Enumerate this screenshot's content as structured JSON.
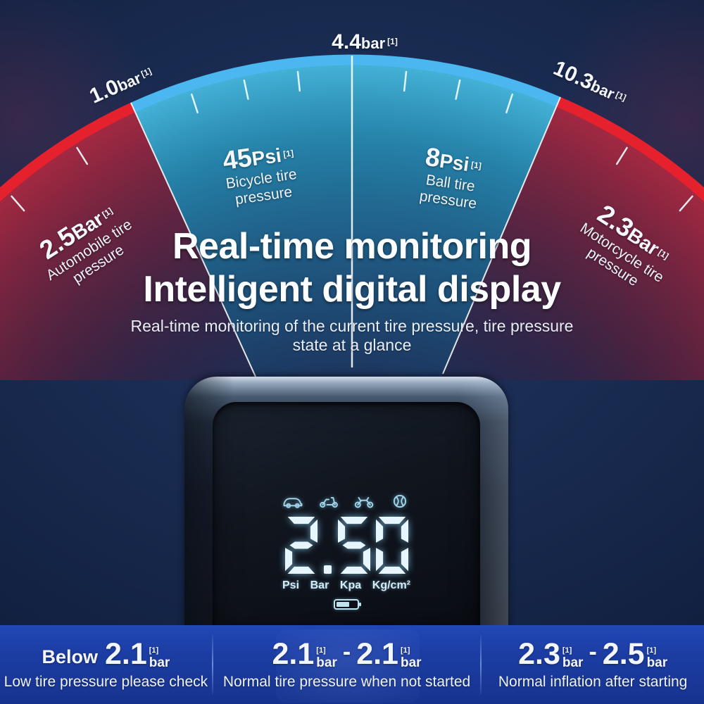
{
  "gauge": {
    "top_label": {
      "value": "4.4",
      "unit": "bar",
      "sup": "[1]"
    },
    "left_label": {
      "value": "1.0",
      "unit": "bar",
      "sup": "[1]"
    },
    "right_label": {
      "value": "10.3",
      "unit": "bar",
      "sup": "[1]"
    },
    "sectors": [
      {
        "value": "2.5",
        "unit": "Bar",
        "sup": "[1]",
        "line1": "Automobile tire",
        "line2": "pressure"
      },
      {
        "value": "45",
        "unit": "Psi",
        "sup": "[1]",
        "line1": "Bicycle tire",
        "line2": "pressure"
      },
      {
        "value": "8",
        "unit": "Psi",
        "sup": "[1]",
        "line1": "Ball tire",
        "line2": "pressure"
      },
      {
        "value": "2.3",
        "unit": "Bar",
        "sup": "[1]",
        "line1": "Motorcycle tire",
        "line2": "pressure"
      }
    ]
  },
  "heading": {
    "line1": "Real-time monitoring",
    "line2": "Intelligent digital display"
  },
  "subtitle": {
    "line1": "Real-time monitoring of the current tire pressure, tire pressure",
    "line2": "state at a glance"
  },
  "device": {
    "display_value": "2.50",
    "units": [
      "Psi",
      "Bar",
      "Kpa",
      "Kg/cm²"
    ],
    "icons": [
      "car-icon",
      "scooter-icon",
      "motorcycle-icon",
      "ball-icon",
      "battery-icon"
    ]
  },
  "footer": {
    "sections": [
      {
        "prefix": "Below",
        "a": {
          "value": "2.1",
          "sup": "[1]",
          "unit": "bar"
        },
        "desc": "Low tire pressure please check"
      },
      {
        "a": {
          "value": "2.1",
          "sup": "[1]",
          "unit": "bar"
        },
        "dash": "-",
        "b": {
          "value": "2.1",
          "sup": "[1]",
          "unit": "bar"
        },
        "desc": "Normal tire pressure when not started"
      },
      {
        "a": {
          "value": "2.3",
          "sup": "[1]",
          "unit": "bar"
        },
        "dash": "-",
        "b": {
          "value": "2.5",
          "sup": "[1]",
          "unit": "bar"
        },
        "desc": "Normal inflation after starting"
      }
    ]
  },
  "colors": {
    "background_navy": "#18294e",
    "accent_blue": "#4ab7f0",
    "accent_red": "#e6212e",
    "teal_fill": "#2e9fc4",
    "dark_red_fill": "#8e2136",
    "banner_blue": "#1c3ea6",
    "display_glow": "#dff2fb"
  }
}
